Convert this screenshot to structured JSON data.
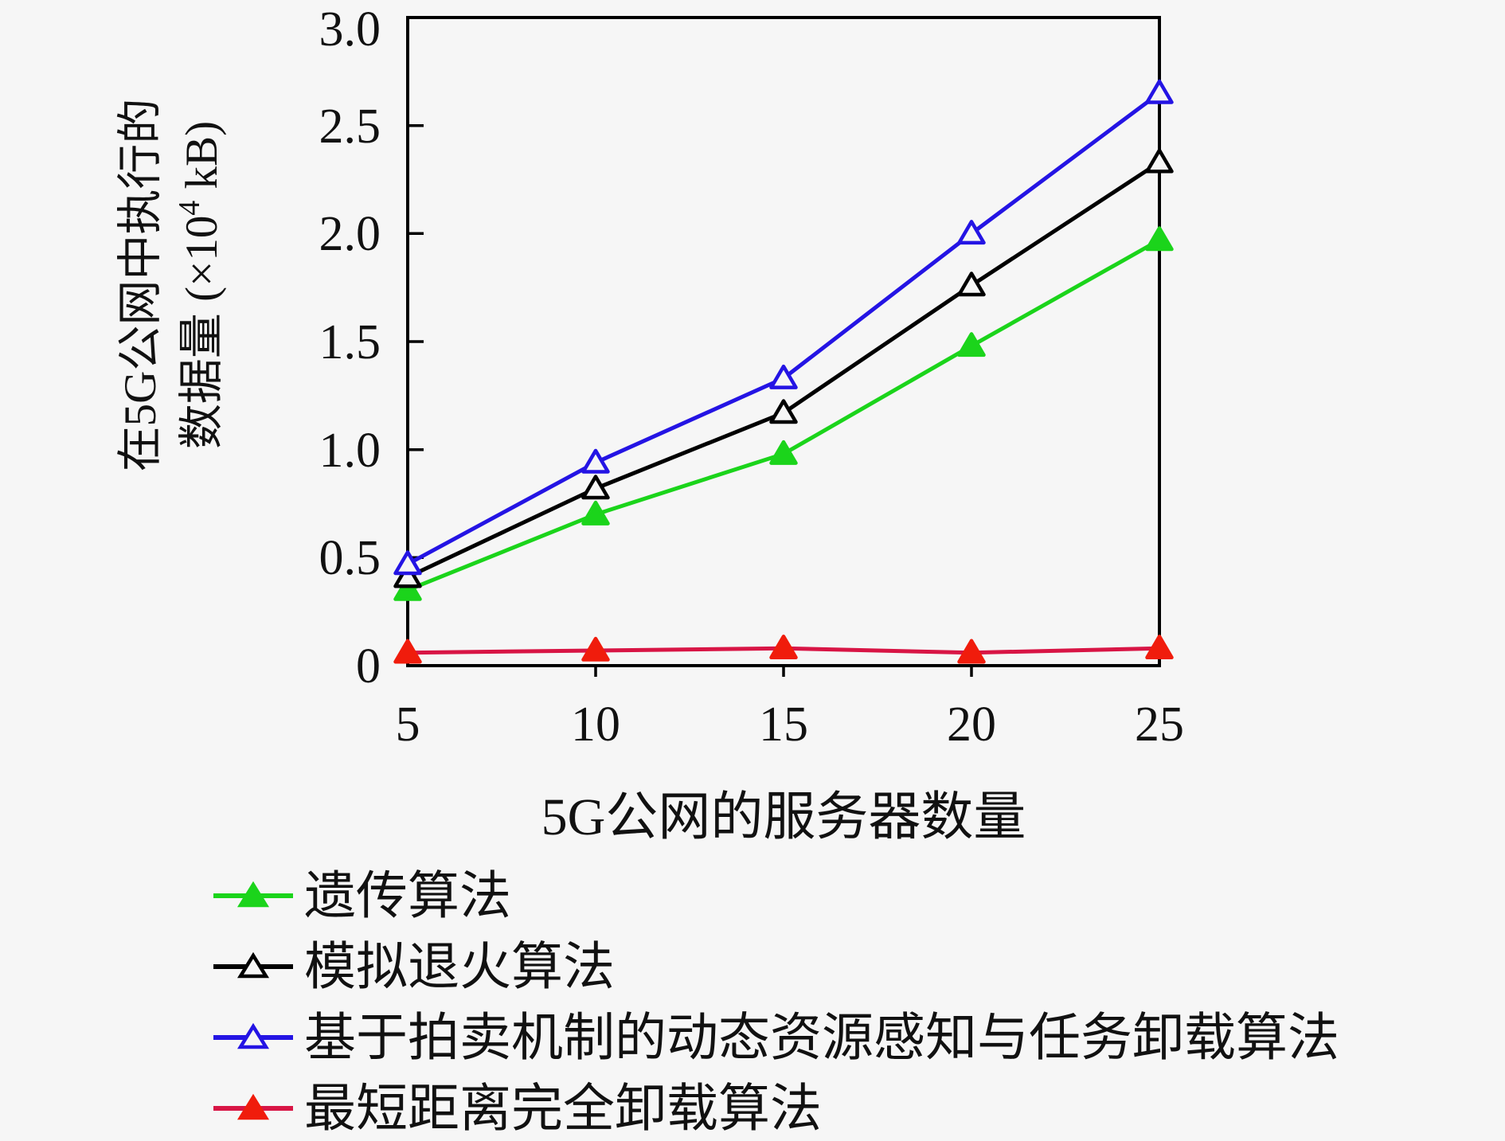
{
  "figure": {
    "background": "#f6f6f6",
    "plot_border_color": "#000000"
  },
  "chart_data": {
    "type": "line",
    "x": [
      5,
      10,
      15,
      20,
      25
    ],
    "xtick_labels": [
      "5",
      "10",
      "15",
      "20",
      "25"
    ],
    "ytick_labels": [
      "0",
      "0.5",
      "1.0",
      "1.5",
      "2.0",
      "2.5",
      "3.0"
    ],
    "xlim": [
      5,
      25
    ],
    "ylim": [
      0,
      3.0
    ],
    "grid": false,
    "xlabel": "5G公网的服务器数量",
    "ylabel": "在5G公网中执行的数据量 (×10⁴ kB)",
    "ylabel_line1": "在5G公网中执行的",
    "ylabel_line2_parts": {
      "pre": "数据量 (×10",
      "sup": "4",
      "post": " kB)"
    },
    "legend_position": "below-left",
    "series": [
      {
        "name": "遗传算法",
        "color": "#1bd41b",
        "marker": "triangle-solid",
        "values": [
          0.35,
          0.7,
          0.98,
          1.48,
          1.97
        ]
      },
      {
        "name": "模拟退火算法",
        "color": "#000000",
        "marker": "triangle-open",
        "values": [
          0.41,
          0.82,
          1.17,
          1.76,
          2.33
        ]
      },
      {
        "name": "基于拍卖机制的动态资源感知与任务卸载算法",
        "color": "#2414e4",
        "marker": "triangle-open",
        "values": [
          0.47,
          0.94,
          1.33,
          2.0,
          2.65
        ]
      },
      {
        "name": "最短距离完全卸载算法",
        "color": "#f01c0c",
        "line_color": "#d81545",
        "marker": "triangle-solid",
        "values": [
          0.06,
          0.07,
          0.08,
          0.06,
          0.08
        ]
      }
    ]
  }
}
